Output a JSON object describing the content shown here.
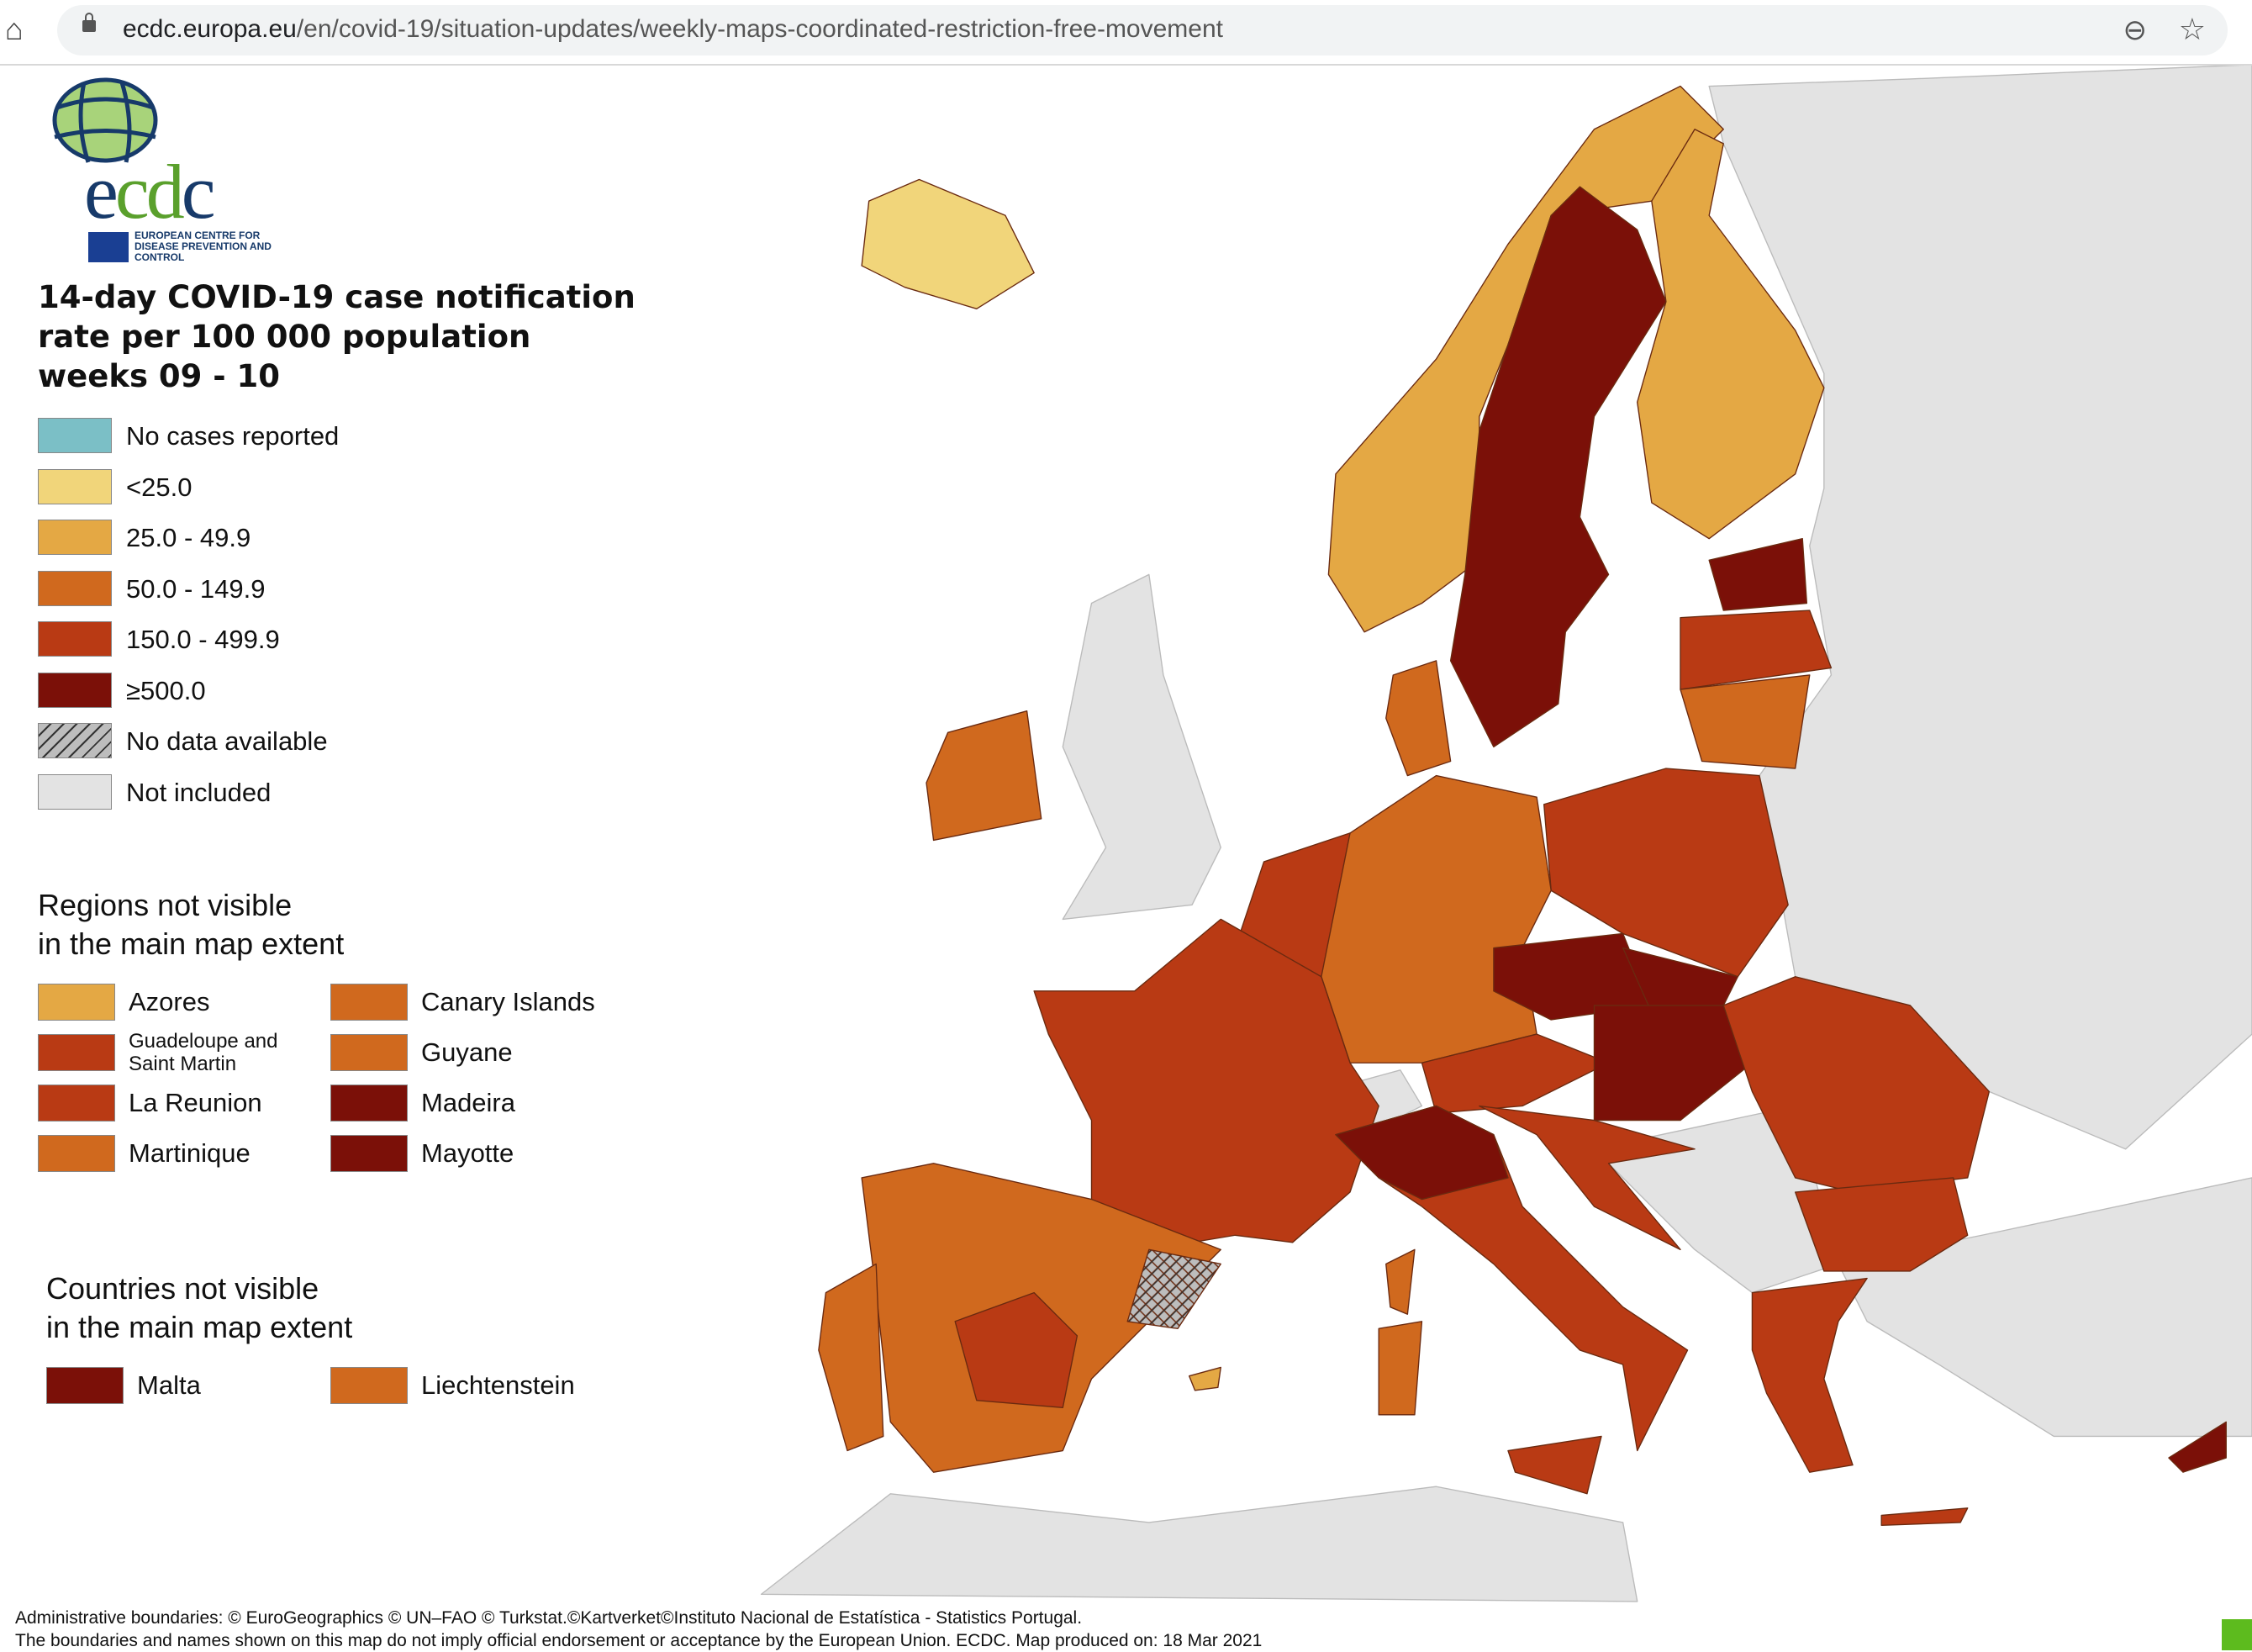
{
  "browser": {
    "url_host": "ecdc.europa.eu",
    "url_path": "/en/covid-19/situation-updates/weekly-maps-coordinated-restriction-free-movement"
  },
  "logo": {
    "wordmark": "ecdc",
    "caption": "EUROPEAN CENTRE FOR DISEASE PREVENTION AND CONTROL"
  },
  "title": {
    "line1": "14-day COVID-19 case notification",
    "line2": "rate per 100 000 population",
    "line3": "weeks 09 - 10"
  },
  "legend": [
    {
      "label": "No cases reported",
      "color": "#7bbfc6"
    },
    {
      "label": "<25.0",
      "color": "#f1d57a"
    },
    {
      "label": "25.0 - 49.9",
      "color": "#e4a844"
    },
    {
      "label": "50.0 - 149.9",
      "color": "#d0691e"
    },
    {
      "label": "150.0 - 499.9",
      "color": "#b93a14"
    },
    {
      "label": "≥500.0",
      "color": "#7b1008"
    },
    {
      "label": "No data available",
      "color": "hatched"
    },
    {
      "label": "Not included",
      "color": "#e3e3e3"
    }
  ],
  "regions_section": {
    "title_line1": "Regions not visible",
    "title_line2": "in the main map extent",
    "items": [
      {
        "label": "Azores",
        "color": "#e4a844"
      },
      {
        "label": "Canary Islands",
        "color": "#d0691e"
      },
      {
        "label": "Guadeloupe and Saint Martin",
        "color": "#b93a14"
      },
      {
        "label": "Guyane",
        "color": "#d0691e"
      },
      {
        "label": "La Reunion",
        "color": "#b93a14"
      },
      {
        "label": "Madeira",
        "color": "#7b1008"
      },
      {
        "label": "Martinique",
        "color": "#d0691e"
      },
      {
        "label": "Mayotte",
        "color": "#7b1008"
      }
    ]
  },
  "countries_section": {
    "title_line1": "Countries not visible",
    "title_line2": "in the main map extent",
    "items": [
      {
        "label": "Malta",
        "color": "#7b1008"
      },
      {
        "label": "Liechtenstein",
        "color": "#d0691e"
      }
    ]
  },
  "footer": {
    "line1": "Administrative boundaries: © EuroGeographics © UN–FAO © Turkstat.©Kartverket©Instituto Nacional de Estatística - Statistics Portugal.",
    "line2": "The boundaries and names shown on this map do not imply official endorsement or acceptance by the European Union. ECDC. Map produced on: 18 Mar 2021"
  }
}
